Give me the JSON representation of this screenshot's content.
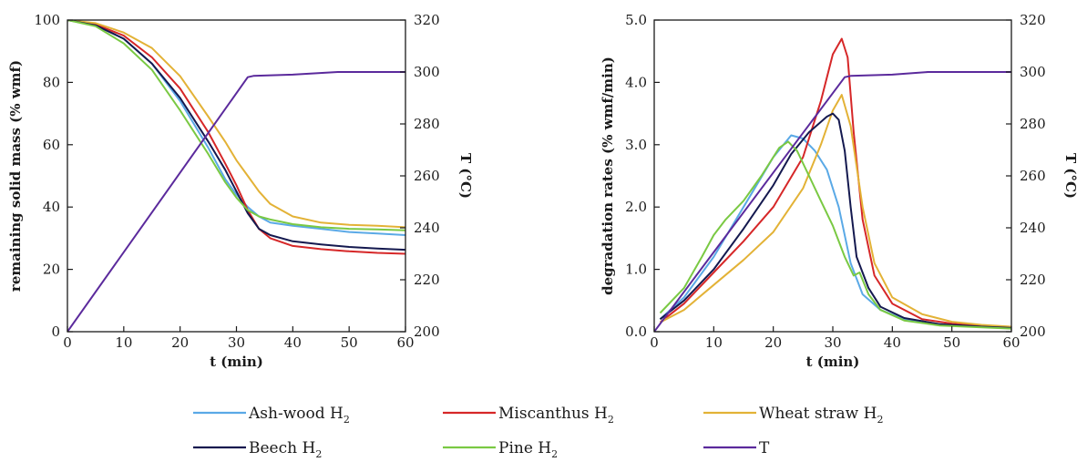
{
  "chart_data": [
    {
      "type": "line",
      "xlabel": "t (min)",
      "ylabel": "remaining solid mass (% wmf)",
      "y2label": "T (°C)",
      "xlim": [
        0,
        60
      ],
      "ylim": [
        0,
        100
      ],
      "y2lim": [
        200,
        320
      ],
      "xticks": [
        "0",
        "10",
        "20",
        "30",
        "40",
        "50",
        "60"
      ],
      "yticks": [
        "0",
        "20",
        "40",
        "60",
        "80",
        "100"
      ],
      "y2ticks": [
        "200",
        "220",
        "240",
        "260",
        "280",
        "300",
        "320"
      ],
      "grid": false,
      "series": [
        {
          "id": "ash",
          "color": "#5aa9e6",
          "axis": "left",
          "x": [
            0,
            5,
            10,
            15,
            20,
            25,
            28,
            30,
            32,
            34,
            36,
            40,
            45,
            50,
            55,
            60
          ],
          "y": [
            100,
            98.5,
            94,
            86,
            74,
            59,
            49,
            44,
            40,
            37,
            35,
            34,
            33,
            32,
            31.5,
            31
          ]
        },
        {
          "id": "miscanthus",
          "color": "#d62728",
          "axis": "left",
          "x": [
            0,
            5,
            10,
            15,
            20,
            25,
            28,
            30,
            32,
            34,
            36,
            40,
            45,
            50,
            55,
            60
          ],
          "y": [
            100,
            98.6,
            95,
            88,
            78,
            64,
            54,
            47,
            39,
            33,
            30,
            27.5,
            26.5,
            25.8,
            25.3,
            25
          ]
        },
        {
          "id": "wheat",
          "color": "#e3b236",
          "axis": "left",
          "x": [
            0,
            5,
            10,
            15,
            20,
            25,
            28,
            30,
            32,
            34,
            36,
            40,
            45,
            50,
            55,
            60
          ],
          "y": [
            100,
            99,
            96,
            91,
            82,
            69,
            61,
            55,
            50,
            45,
            41,
            37,
            35,
            34.3,
            34,
            33.5
          ]
        },
        {
          "id": "beech",
          "color": "#14194f",
          "axis": "left",
          "x": [
            0,
            5,
            10,
            15,
            20,
            25,
            28,
            30,
            32,
            34,
            36,
            40,
            45,
            50,
            55,
            60
          ],
          "y": [
            100,
            98.3,
            94,
            86,
            75,
            61,
            52,
            45,
            38,
            33,
            31,
            29,
            28,
            27.2,
            26.7,
            26.3
          ]
        },
        {
          "id": "pine",
          "color": "#7ac943",
          "axis": "left",
          "x": [
            0,
            5,
            10,
            15,
            20,
            25,
            28,
            30,
            32,
            34,
            36,
            40,
            45,
            50,
            55,
            60
          ],
          "y": [
            100,
            98,
            92.5,
            84,
            71,
            57,
            48,
            43,
            39,
            37,
            36,
            34.5,
            33.5,
            33,
            32.8,
            32.5
          ]
        },
        {
          "id": "T",
          "color": "#5b2a9c",
          "axis": "right",
          "x": [
            0,
            32,
            33,
            40,
            48,
            55,
            60
          ],
          "y": [
            200,
            298,
            298.5,
            299,
            300,
            300,
            300
          ]
        }
      ]
    },
    {
      "type": "line",
      "xlabel": "t (min)",
      "ylabel": "degradation rates (% wmf/min)",
      "y2label": "T (°C)",
      "xlim": [
        0,
        60
      ],
      "ylim": [
        0,
        5
      ],
      "y2lim": [
        200,
        320
      ],
      "xticks": [
        "0",
        "10",
        "20",
        "30",
        "40",
        "50",
        "60"
      ],
      "yticks": [
        "0.0",
        "1.0",
        "2.0",
        "3.0",
        "4.0",
        "5.0"
      ],
      "y2ticks": [
        "200",
        "220",
        "240",
        "260",
        "280",
        "300",
        "320"
      ],
      "grid": false,
      "series": [
        {
          "id": "ash",
          "color": "#5aa9e6",
          "axis": "left",
          "x": [
            1,
            5,
            10,
            15,
            20,
            23,
            25,
            27,
            29,
            31,
            33,
            35,
            38,
            42,
            48,
            55,
            60
          ],
          "y": [
            0.2,
            0.55,
            1.2,
            2.0,
            2.8,
            3.15,
            3.1,
            2.9,
            2.6,
            2.0,
            1.1,
            0.6,
            0.35,
            0.2,
            0.12,
            0.08,
            0.06
          ]
        },
        {
          "id": "miscanthus",
          "color": "#d62728",
          "axis": "left",
          "x": [
            1,
            5,
            10,
            15,
            20,
            25,
            28,
            30,
            31.5,
            32.5,
            33.5,
            35,
            37,
            40,
            45,
            50,
            55,
            60
          ],
          "y": [
            0.15,
            0.45,
            0.95,
            1.45,
            2.0,
            2.8,
            3.7,
            4.45,
            4.7,
            4.4,
            3.2,
            1.8,
            0.9,
            0.45,
            0.2,
            0.13,
            0.09,
            0.06
          ]
        },
        {
          "id": "wheat",
          "color": "#e3b236",
          "axis": "left",
          "x": [
            1,
            5,
            10,
            15,
            20,
            25,
            28,
            30,
            31.5,
            33,
            35,
            37,
            40,
            45,
            50,
            55,
            60
          ],
          "y": [
            0.15,
            0.35,
            0.75,
            1.15,
            1.6,
            2.3,
            3.0,
            3.55,
            3.8,
            3.3,
            2.0,
            1.1,
            0.55,
            0.28,
            0.16,
            0.11,
            0.08
          ]
        },
        {
          "id": "beech",
          "color": "#14194f",
          "axis": "left",
          "x": [
            1,
            5,
            10,
            15,
            20,
            23,
            26,
            29,
            30,
            31,
            32,
            33,
            34,
            36,
            38,
            42,
            48,
            55,
            60
          ],
          "y": [
            0.2,
            0.5,
            1.0,
            1.65,
            2.35,
            2.85,
            3.2,
            3.45,
            3.5,
            3.4,
            2.9,
            2.0,
            1.2,
            0.7,
            0.4,
            0.22,
            0.12,
            0.08,
            0.06
          ]
        },
        {
          "id": "pine",
          "color": "#7ac943",
          "axis": "left",
          "x": [
            1,
            5,
            8,
            10,
            12,
            15,
            18,
            21,
            22.5,
            24,
            26,
            28,
            30,
            32,
            33.5,
            34.5,
            36,
            38,
            42,
            48,
            55,
            60
          ],
          "y": [
            0.3,
            0.7,
            1.2,
            1.55,
            1.8,
            2.1,
            2.5,
            2.95,
            3.05,
            2.9,
            2.5,
            2.1,
            1.7,
            1.2,
            0.9,
            0.95,
            0.6,
            0.35,
            0.18,
            0.1,
            0.07,
            0.05
          ]
        },
        {
          "id": "T",
          "color": "#5b2a9c",
          "axis": "right",
          "x": [
            0,
            32,
            33,
            40,
            46,
            55,
            60
          ],
          "y": [
            200,
            298,
            298.5,
            299,
            300,
            300,
            300
          ]
        }
      ]
    }
  ],
  "legend": [
    {
      "id": "ash",
      "label": "Ash-wood H",
      "sub": "2",
      "color": "#5aa9e6"
    },
    {
      "id": "miscanthus",
      "label": "Miscanthus  H",
      "sub": "2",
      "color": "#d62728"
    },
    {
      "id": "wheat",
      "label": "Wheat straw  H",
      "sub": "2",
      "color": "#e3b236"
    },
    {
      "id": "beech",
      "label": "Beech H",
      "sub": "2",
      "color": "#14194f"
    },
    {
      "id": "pine",
      "label": "Pine  H",
      "sub": "2",
      "color": "#7ac943"
    },
    {
      "id": "T",
      "label": "T",
      "sub": "",
      "color": "#5b2a9c"
    }
  ]
}
